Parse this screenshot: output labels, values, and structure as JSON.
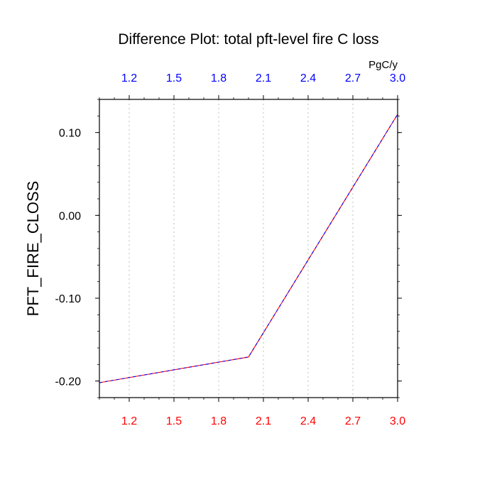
{
  "chart_data": {
    "type": "line",
    "title": "Difference Plot: total pft-level fire C loss",
    "ylabel": "PFT_FIRE_CLOSS",
    "top_axis_unit": "PgC/y",
    "xlim": [
      1.0,
      3.0
    ],
    "ylim": [
      -0.22,
      0.14
    ],
    "x_ticks": [
      "1.2",
      "1.5",
      "1.8",
      "2.1",
      "2.4",
      "2.7",
      "3.0"
    ],
    "y_ticks": [
      "0.10",
      "0.00",
      "-0.10",
      "-0.20"
    ],
    "grid": "vertical dotted",
    "colors": {
      "bottom_tick_labels": "#ff0000",
      "top_tick_labels": "#0000ff",
      "line_primary": "#ff0000",
      "line_overlay": "#0000ff",
      "grid": "#bfbfbf",
      "axes": "#000000"
    },
    "series": [
      {
        "x": [
          1.0,
          2.0,
          3.0
        ],
        "y": [
          -0.202,
          -0.171,
          0.122
        ]
      }
    ]
  }
}
